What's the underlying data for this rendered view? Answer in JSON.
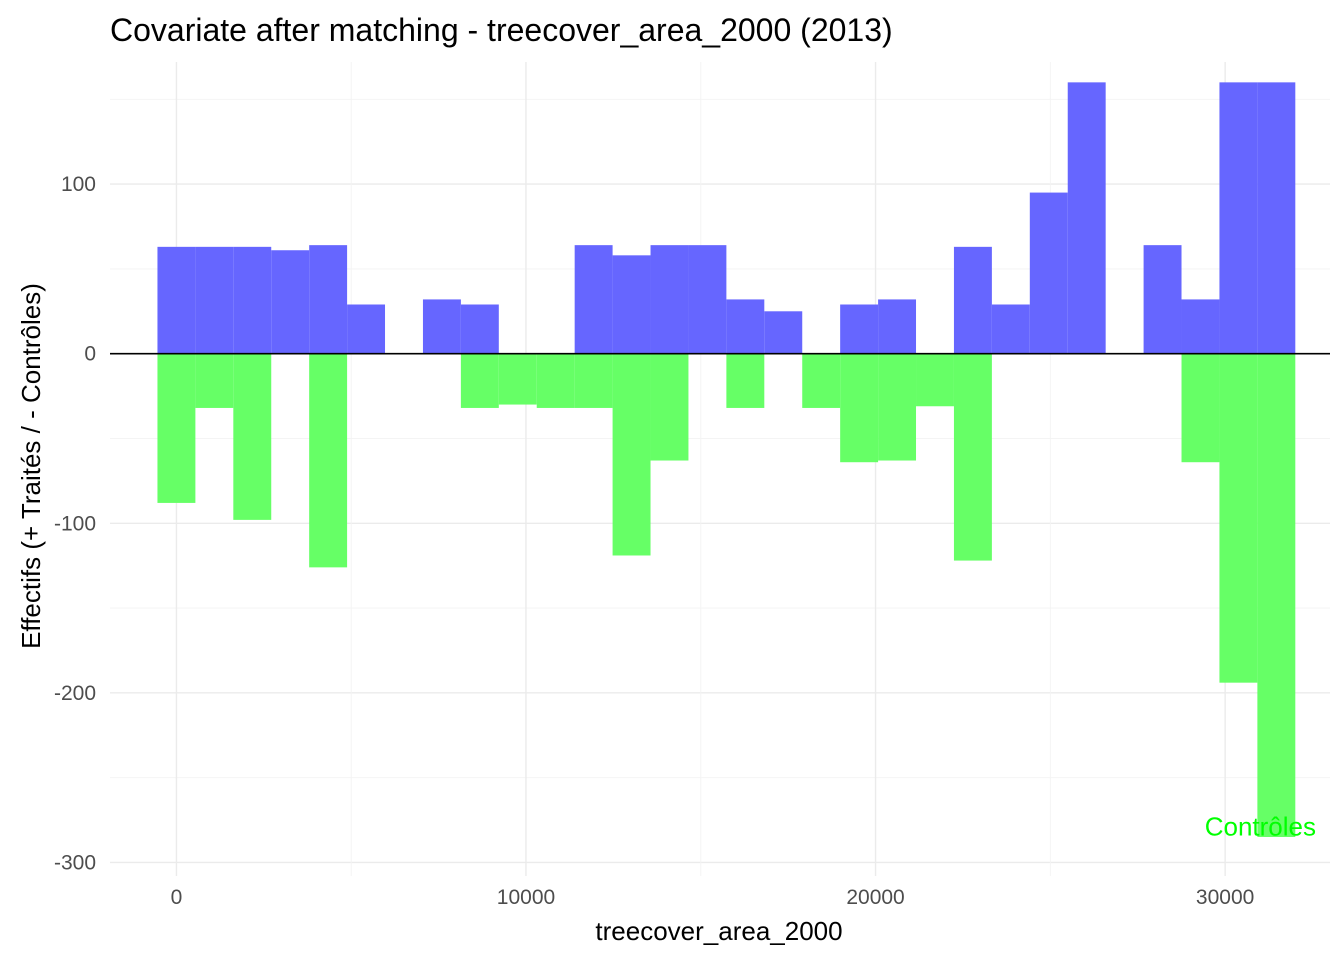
{
  "chart_data": {
    "type": "bar",
    "title": "Covariate after matching - treecover_area_2000 (2013)",
    "xlabel": "treecover_area_2000",
    "ylabel": "Effectifs (+ Traités / - Contrôles)",
    "xlim": [
      -1900,
      33000
    ],
    "ylim": [
      -308,
      172
    ],
    "x_ticks": [
      0,
      10000,
      20000,
      30000
    ],
    "x_tick_labels": [
      "0",
      "10000",
      "20000",
      "30000"
    ],
    "y_ticks": [
      -300,
      -200,
      -100,
      0,
      100
    ],
    "y_tick_labels": [
      "-300",
      "-200",
      "-100",
      "0",
      "100"
    ],
    "bin_width": 1085,
    "bins": [
      0,
      1085,
      2170,
      3255,
      4340,
      5425,
      6510,
      7595,
      8680,
      9765,
      10850,
      11935,
      13020,
      14105,
      15190,
      16275,
      17360,
      18445,
      19530,
      20615,
      21700,
      22785,
      23870,
      24955,
      26040,
      27125,
      28210,
      29295,
      30380,
      31465
    ],
    "grid": true,
    "legend": "none",
    "series": [
      {
        "color": "#6666ff",
        "values": [
          63,
          63,
          63,
          61,
          64,
          29,
          0,
          32,
          29,
          0,
          0,
          64,
          58,
          64,
          64,
          32,
          25,
          0,
          29,
          32,
          0,
          63,
          29,
          95,
          160,
          0,
          64,
          32,
          160,
          160
        ]
      },
      {
        "color": "#66ff66",
        "values": [
          -88,
          -32,
          -98,
          0,
          -126,
          0,
          0,
          0,
          -32,
          -30,
          -32,
          -32,
          -119,
          -63,
          0,
          -32,
          0,
          -32,
          -64,
          -63,
          -31,
          -122,
          0,
          0,
          0,
          0,
          0,
          -64,
          -194,
          -285
        ]
      }
    ],
    "annotations": [
      {
        "text": "Contrôles",
        "color": "#00ff00"
      }
    ]
  }
}
